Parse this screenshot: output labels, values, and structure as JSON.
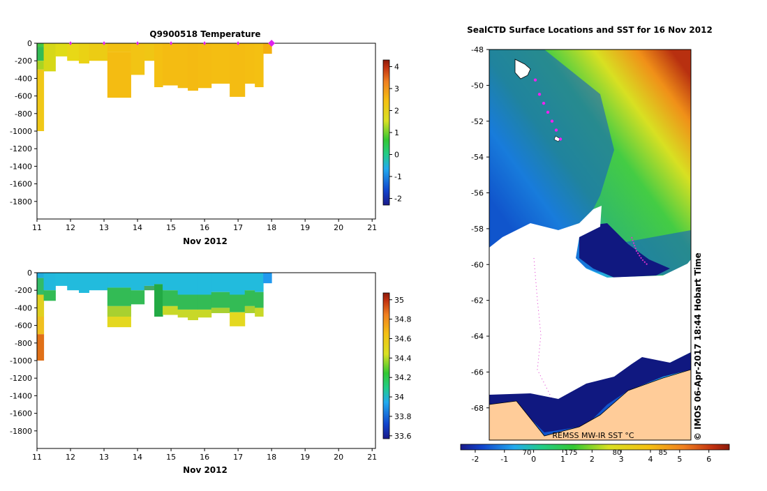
{
  "chart_data": [
    {
      "type": "heatmap",
      "title": "Q9900518  Temperature",
      "xlabel": "Nov 2012",
      "xlim": [
        11,
        21.1
      ],
      "ylim": [
        -2000,
        0
      ],
      "x_ticks": [
        11,
        12,
        13,
        14,
        15,
        16,
        17,
        18,
        19,
        20,
        21
      ],
      "y_ticks": [
        0,
        -200,
        -400,
        -600,
        -800,
        -1000,
        -1200,
        -1400,
        -1600,
        -1800
      ],
      "y_tick_labels": [
        "0",
        "-200",
        "-400",
        "-600",
        "-800",
        "-1000",
        "-1200",
        "-1400",
        "-1600",
        "-1800"
      ],
      "surfacing_markers": [
        12.0,
        13.0,
        14.0,
        15.0,
        16.0,
        17.0,
        18.0
      ],
      "profiles": [
        {
          "x0": 11.0,
          "x1": 11.2,
          "depth": -1000,
          "layers": [
            {
              "to": -40,
              "c": "#44c844"
            },
            {
              "to": -200,
              "c": "#33bb55"
            },
            {
              "to": -300,
              "c": "#aad422"
            },
            {
              "to": -1000,
              "c": "#f0c818"
            }
          ]
        },
        {
          "x0": 11.2,
          "x1": 11.55,
          "depth": -320,
          "layers": [
            {
              "to": -320,
              "c": "#d6d818"
            }
          ]
        },
        {
          "x0": 11.55,
          "x1": 11.9,
          "depth": -150,
          "layers": [
            {
              "to": -150,
              "c": "#e0dc16"
            }
          ]
        },
        {
          "x0": 11.9,
          "x1": 12.25,
          "depth": -200,
          "layers": [
            {
              "to": -200,
              "c": "#e8d816"
            }
          ]
        },
        {
          "x0": 12.25,
          "x1": 12.55,
          "depth": -230,
          "layers": [
            {
              "to": -230,
              "c": "#ead214"
            }
          ]
        },
        {
          "x0": 12.55,
          "x1": 13.1,
          "depth": -200,
          "layers": [
            {
              "to": -200,
              "c": "#eccc14"
            }
          ]
        },
        {
          "x0": 13.1,
          "x1": 13.8,
          "depth": -620,
          "layers": [
            {
              "to": -100,
              "c": "#f2c012"
            },
            {
              "to": -620,
              "c": "#f4bc12"
            }
          ]
        },
        {
          "x0": 13.8,
          "x1": 14.2,
          "depth": -360,
          "layers": [
            {
              "to": -360,
              "c": "#f2c414"
            }
          ]
        },
        {
          "x0": 14.2,
          "x1": 14.5,
          "depth": -200,
          "layers": [
            {
              "to": -200,
              "c": "#f0c614"
            }
          ]
        },
        {
          "x0": 14.5,
          "x1": 14.75,
          "depth": -500,
          "layers": [
            {
              "to": -500,
              "c": "#f4c012"
            }
          ]
        },
        {
          "x0": 14.75,
          "x1": 15.2,
          "depth": -480,
          "layers": [
            {
              "to": -480,
              "c": "#f4bc12"
            }
          ]
        },
        {
          "x0": 15.2,
          "x1": 15.5,
          "depth": -510,
          "layers": [
            {
              "to": -510,
              "c": "#f4bc12"
            }
          ]
        },
        {
          "x0": 15.5,
          "x1": 15.8,
          "depth": -540,
          "layers": [
            {
              "to": -540,
              "c": "#f4ba12"
            }
          ]
        },
        {
          "x0": 15.8,
          "x1": 16.2,
          "depth": -510,
          "layers": [
            {
              "to": -510,
              "c": "#f4bc12"
            }
          ]
        },
        {
          "x0": 16.2,
          "x1": 16.75,
          "depth": -460,
          "layers": [
            {
              "to": -460,
              "c": "#f4be12"
            }
          ]
        },
        {
          "x0": 16.75,
          "x1": 17.2,
          "depth": -610,
          "layers": [
            {
              "to": -610,
              "c": "#f4bc12"
            }
          ]
        },
        {
          "x0": 17.2,
          "x1": 17.5,
          "depth": -460,
          "layers": [
            {
              "to": -460,
              "c": "#f4be12"
            }
          ]
        },
        {
          "x0": 17.5,
          "x1": 17.75,
          "depth": -500,
          "layers": [
            {
              "to": -500,
              "c": "#f4c012"
            }
          ]
        },
        {
          "x0": 17.75,
          "x1": 18.0,
          "depth": -120,
          "layers": [
            {
              "to": -120,
              "c": "#f4b010"
            }
          ]
        }
      ],
      "colorbar": {
        "min": -2.3,
        "max": 4.3,
        "ticks": [
          4,
          3,
          2,
          1,
          0,
          -1,
          -2
        ],
        "tick_labels": [
          "4",
          "3",
          "2",
          "1",
          "0",
          "-1",
          "-2"
        ],
        "stops": [
          "#1a1a8a",
          "#1144cc",
          "#22aaee",
          "#22cc88",
          "#33c833",
          "#d8e022",
          "#f4c012",
          "#f08020",
          "#c03010",
          "#8b1a0a"
        ]
      }
    },
    {
      "type": "heatmap",
      "title": "",
      "xlabel": "Nov 2012",
      "xlim": [
        11,
        21.1
      ],
      "ylim": [
        -2000,
        0
      ],
      "x_ticks": [
        11,
        12,
        13,
        14,
        15,
        16,
        17,
        18,
        19,
        20,
        21
      ],
      "y_ticks": [
        0,
        -200,
        -400,
        -600,
        -800,
        -1000,
        -1200,
        -1400,
        -1600,
        -1800
      ],
      "y_tick_labels": [
        "0",
        "-200",
        "-400",
        "-600",
        "-800",
        "-1000",
        "-1200",
        "-1400",
        "-1600",
        "-1800"
      ],
      "profiles": [
        {
          "x0": 11.0,
          "x1": 11.2,
          "depth": -1000,
          "layers": [
            {
              "to": -60,
              "c": "#22aadd"
            },
            {
              "to": -250,
              "c": "#33bb66"
            },
            {
              "to": -500,
              "c": "#e0d020"
            },
            {
              "to": -700,
              "c": "#f0c020"
            },
            {
              "to": -1000,
              "c": "#e07018"
            }
          ]
        },
        {
          "x0": 11.2,
          "x1": 11.55,
          "depth": -320,
          "layers": [
            {
              "to": -200,
              "c": "#22b8dd"
            },
            {
              "to": -320,
              "c": "#33bb55"
            }
          ]
        },
        {
          "x0": 11.55,
          "x1": 11.9,
          "depth": -150,
          "layers": [
            {
              "to": -150,
              "c": "#22bbdd"
            }
          ]
        },
        {
          "x0": 11.9,
          "x1": 12.25,
          "depth": -200,
          "layers": [
            {
              "to": -200,
              "c": "#22bbdd"
            }
          ]
        },
        {
          "x0": 12.25,
          "x1": 12.55,
          "depth": -230,
          "layers": [
            {
              "to": -230,
              "c": "#22bbdd"
            }
          ]
        },
        {
          "x0": 12.55,
          "x1": 13.1,
          "depth": -200,
          "layers": [
            {
              "to": -200,
              "c": "#22bbdd"
            }
          ]
        },
        {
          "x0": 13.1,
          "x1": 13.8,
          "depth": -620,
          "layers": [
            {
              "to": -170,
              "c": "#22bbdd"
            },
            {
              "to": -380,
              "c": "#33bb55"
            },
            {
              "to": -500,
              "c": "#a8d030"
            },
            {
              "to": -620,
              "c": "#e4d820"
            }
          ]
        },
        {
          "x0": 13.8,
          "x1": 14.2,
          "depth": -360,
          "layers": [
            {
              "to": -200,
              "c": "#22bbdd"
            },
            {
              "to": -360,
              "c": "#33bb55"
            }
          ]
        },
        {
          "x0": 14.2,
          "x1": 14.5,
          "depth": -200,
          "layers": [
            {
              "to": -150,
              "c": "#22bbdd"
            },
            {
              "to": -200,
              "c": "#44aa66"
            }
          ]
        },
        {
          "x0": 14.5,
          "x1": 14.75,
          "depth": -500,
          "layers": [
            {
              "to": -130,
              "c": "#22bbdd"
            },
            {
              "to": -500,
              "c": "#22aa44"
            }
          ]
        },
        {
          "x0": 14.75,
          "x1": 15.2,
          "depth": -480,
          "layers": [
            {
              "to": -200,
              "c": "#22bbdd"
            },
            {
              "to": -380,
              "c": "#33bb55"
            },
            {
              "to": -480,
              "c": "#c8d828"
            }
          ]
        },
        {
          "x0": 15.2,
          "x1": 15.5,
          "depth": -510,
          "layers": [
            {
              "to": -250,
              "c": "#22bbdd"
            },
            {
              "to": -420,
              "c": "#33bb55"
            },
            {
              "to": -510,
              "c": "#c8d828"
            }
          ]
        },
        {
          "x0": 15.5,
          "x1": 15.8,
          "depth": -540,
          "layers": [
            {
              "to": -250,
              "c": "#22bbdd"
            },
            {
              "to": -420,
              "c": "#33bb55"
            },
            {
              "to": -540,
              "c": "#c8d828"
            }
          ]
        },
        {
          "x0": 15.8,
          "x1": 16.2,
          "depth": -510,
          "layers": [
            {
              "to": -250,
              "c": "#22bbdd"
            },
            {
              "to": -420,
              "c": "#33bb55"
            },
            {
              "to": -510,
              "c": "#c8d828"
            }
          ]
        },
        {
          "x0": 16.2,
          "x1": 16.75,
          "depth": -460,
          "layers": [
            {
              "to": -220,
              "c": "#22bbdd"
            },
            {
              "to": -400,
              "c": "#33bb55"
            },
            {
              "to": -460,
              "c": "#a8d030"
            }
          ]
        },
        {
          "x0": 16.75,
          "x1": 17.2,
          "depth": -610,
          "layers": [
            {
              "to": -250,
              "c": "#22bbdd"
            },
            {
              "to": -450,
              "c": "#33bb55"
            },
            {
              "to": -610,
              "c": "#e4d820"
            }
          ]
        },
        {
          "x0": 17.2,
          "x1": 17.5,
          "depth": -460,
          "layers": [
            {
              "to": -200,
              "c": "#22bbdd"
            },
            {
              "to": -380,
              "c": "#33bb55"
            },
            {
              "to": -460,
              "c": "#a8d030"
            }
          ]
        },
        {
          "x0": 17.5,
          "x1": 17.75,
          "depth": -500,
          "layers": [
            {
              "to": -220,
              "c": "#22bbdd"
            },
            {
              "to": -400,
              "c": "#33bb55"
            },
            {
              "to": -500,
              "c": "#c8d828"
            }
          ]
        },
        {
          "x0": 17.75,
          "x1": 18.0,
          "depth": -120,
          "layers": [
            {
              "to": -120,
              "c": "#2299ee"
            }
          ]
        }
      ],
      "colorbar": {
        "min": 33.57,
        "max": 35.07,
        "ticks": [
          35,
          34.8,
          34.6,
          34.4,
          34.2,
          34,
          33.8,
          33.6
        ],
        "tick_labels": [
          "35",
          "34.8",
          "34.6",
          "34.4",
          "34.2",
          "34",
          "33.8",
          "33.6"
        ],
        "stops": [
          "#1a1a8a",
          "#1144cc",
          "#22aaee",
          "#22cc88",
          "#33c833",
          "#d8e022",
          "#f4c012",
          "#f08020",
          "#c03010",
          "#8b1a0a"
        ]
      }
    },
    {
      "type": "heatmap",
      "title": "SealCTD Surface Locations and SST for 16 Nov 2012",
      "ylim": [
        -69.8,
        -48
      ],
      "y_ticks": [
        -48,
        -50,
        -52,
        -54,
        -56,
        -58,
        -60,
        -62,
        -64,
        -66,
        -68
      ],
      "y_tick_labels": [
        "-48",
        "-50",
        "-52",
        "-54",
        "-56",
        "-58",
        "-60",
        "-62",
        "-64",
        "-66",
        "-68"
      ],
      "product_label": "REMSS MW-IR SST °C",
      "credit": "© IMOS 06-Apr-2017 18:44 Hobart Time",
      "colorbar_ticks": [
        -2,
        -1,
        0,
        1,
        2,
        3,
        4,
        5,
        6
      ],
      "colorbar_tick_labels": [
        "-2",
        "-1",
        "0",
        "1",
        "2",
        "3",
        "4",
        "5",
        "6"
      ],
      "contour_labels": [
        "70",
        "175",
        "80",
        "85"
      ],
      "track_points": [
        [
          -49.7
        ],
        [
          -50.5
        ],
        [
          -51.0
        ],
        [
          -51.5
        ],
        [
          -52.0
        ],
        [
          -52.5
        ],
        [
          -53.0
        ]
      ],
      "sst_zones": [
        {
          "zone": "warm-north",
          "c": "#d8e022"
        },
        {
          "zone": "green",
          "c": "#33c833"
        },
        {
          "zone": "cyan",
          "c": "#22aaee"
        },
        {
          "zone": "blue",
          "c": "#1144cc"
        },
        {
          "zone": "deep",
          "c": "#101880"
        },
        {
          "zone": "ice",
          "c": "#ffffff"
        },
        {
          "zone": "land",
          "c": "#ffcc99"
        }
      ]
    }
  ]
}
